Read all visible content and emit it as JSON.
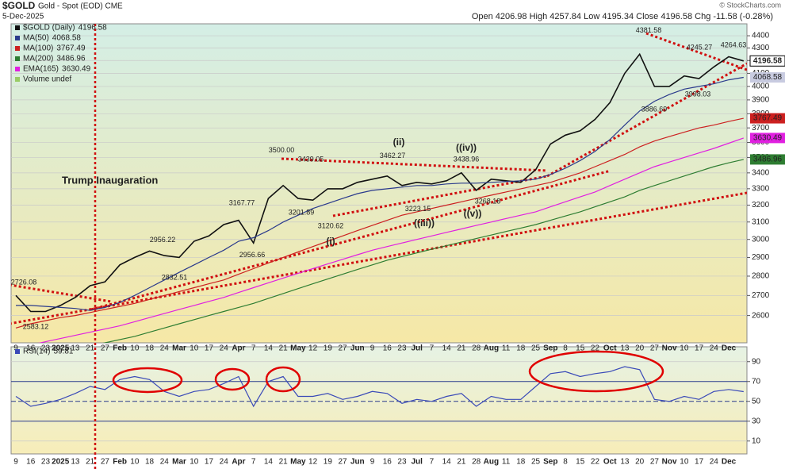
{
  "header": {
    "symbol": "$GOLD",
    "name": "Gold - Spot (EOD) CME",
    "date": "5-Dec-2025",
    "quote": "Open 4206.98  High 4257.84  Low 4195.34  Close 4196.58  Chg -11.58 (-0.28%)",
    "credit": "© StockCharts.com"
  },
  "chart_data": [
    {
      "type": "line",
      "log": true,
      "grid": true,
      "ylim": [
        2470,
        4500
      ],
      "yticks": [
        2600,
        2700,
        2800,
        2900,
        3000,
        3100,
        3200,
        3300,
        3400,
        3500,
        3600,
        3700,
        3800,
        3900,
        4000,
        4100,
        4200,
        4300,
        4400
      ],
      "categories": [
        "9",
        "16",
        "23",
        "2025",
        "13",
        "21",
        "27",
        "Feb",
        "10",
        "18",
        "24",
        "Mar",
        "10",
        "17",
        "24",
        "Apr",
        "7",
        "14",
        "21",
        "May",
        "12",
        "19",
        "27",
        "Jun",
        "9",
        "16",
        "23",
        "Jul",
        "7",
        "14",
        "21",
        "28",
        "Aug",
        "11",
        "18",
        "25",
        "Sep",
        "8",
        "15",
        "22",
        "Oct",
        "13",
        "20",
        "27",
        "Nov",
        "10",
        "17",
        "24",
        "Dec",
        null
      ],
      "series": [
        {
          "name": "$GOLD (Daily)",
          "color": "#111111",
          "values": [
            2700,
            2620,
            2620,
            2650,
            2690,
            2750,
            2770,
            2860,
            2900,
            2935,
            2910,
            2900,
            2990,
            3020,
            3085,
            3110,
            2980,
            3240,
            3320,
            3240,
            3230,
            3300,
            3300,
            3340,
            3360,
            3380,
            3320,
            3340,
            3330,
            3350,
            3400,
            3290,
            3360,
            3350,
            3340,
            3420,
            3590,
            3650,
            3680,
            3760,
            3880,
            4100,
            4250,
            4000,
            4000,
            4080,
            4060,
            4150,
            4230,
            4196.58
          ]
        },
        {
          "name": "MA(50)",
          "color": "#2a3a8c",
          "values": [
            2650,
            2650,
            2645,
            2640,
            2635,
            2625,
            2640,
            2665,
            2700,
            2740,
            2780,
            2820,
            2860,
            2900,
            2940,
            2990,
            3010,
            3050,
            3100,
            3140,
            3180,
            3210,
            3240,
            3270,
            3290,
            3300,
            3310,
            3320,
            3320,
            3330,
            3335,
            3335,
            3340,
            3345,
            3350,
            3360,
            3390,
            3430,
            3480,
            3540,
            3620,
            3720,
            3820,
            3890,
            3940,
            3980,
            4000,
            4020,
            4050,
            4068.58
          ]
        },
        {
          "name": "MA(100)",
          "color": "#cc2020",
          "values": [
            2540,
            2560,
            2575,
            2590,
            2600,
            2615,
            2630,
            2645,
            2660,
            2680,
            2700,
            2720,
            2740,
            2760,
            2780,
            2810,
            2840,
            2870,
            2900,
            2930,
            2960,
            2990,
            3020,
            3050,
            3080,
            3110,
            3140,
            3160,
            3180,
            3200,
            3220,
            3240,
            3260,
            3280,
            3300,
            3320,
            3340,
            3370,
            3400,
            3440,
            3480,
            3520,
            3570,
            3610,
            3640,
            3670,
            3700,
            3720,
            3745,
            3767.49
          ]
        },
        {
          "name": "MA(200)",
          "color": "#2e7d32",
          "values": [
            2400,
            2410,
            2420,
            2430,
            2440,
            2455,
            2470,
            2485,
            2500,
            2520,
            2540,
            2560,
            2580,
            2600,
            2620,
            2640,
            2660,
            2685,
            2710,
            2735,
            2760,
            2785,
            2810,
            2835,
            2860,
            2885,
            2905,
            2925,
            2945,
            2965,
            2985,
            3005,
            3025,
            3045,
            3065,
            3085,
            3110,
            3135,
            3160,
            3190,
            3220,
            3250,
            3290,
            3320,
            3350,
            3380,
            3410,
            3440,
            3465,
            3486.96
          ]
        },
        {
          "name": "EMA(165)",
          "color": "#e020e0",
          "values": [
            2440,
            2460,
            2475,
            2490,
            2505,
            2520,
            2535,
            2550,
            2570,
            2590,
            2610,
            2630,
            2650,
            2670,
            2690,
            2715,
            2740,
            2765,
            2790,
            2815,
            2840,
            2865,
            2890,
            2915,
            2940,
            2960,
            2980,
            3000,
            3020,
            3040,
            3060,
            3080,
            3100,
            3120,
            3140,
            3160,
            3190,
            3220,
            3250,
            3280,
            3320,
            3360,
            3400,
            3440,
            3470,
            3500,
            3530,
            3560,
            3595,
            3630.49
          ]
        }
      ],
      "volume_note": "Volume undef",
      "annotations": [
        "Trump Inaugaration",
        "(i)",
        "(ii)",
        "((iii))",
        "((iv))",
        "((v))"
      ],
      "price_labels": [
        {
          "value": 2726.08,
          "label": "2726.08"
        },
        {
          "value": 2583.12,
          "label": "2583.12"
        },
        {
          "value": 2956.22,
          "label": "2956.22"
        },
        {
          "value": 2832.51,
          "label": "2832.51"
        },
        {
          "value": 3167.77,
          "label": "3167.77"
        },
        {
          "value": 2956.66,
          "label": "2956.66"
        },
        {
          "value": 3500,
          "label": "3500.00"
        },
        {
          "value": 3439.05,
          "label": "3439.05"
        },
        {
          "value": 3201.89,
          "label": "3201.89"
        },
        {
          "value": 3120.62,
          "label": "3120.62"
        },
        {
          "value": 3462.27,
          "label": "3462.27"
        },
        {
          "value": 3223.15,
          "label": "3223.15"
        },
        {
          "value": 3438.96,
          "label": "3438.96"
        },
        {
          "value": 3268.18,
          "label": "3268.18"
        },
        {
          "value": 4381.58,
          "label": "4381.58"
        },
        {
          "value": 3886.69,
          "label": "3886.69"
        },
        {
          "value": 4245.27,
          "label": "4245.27"
        },
        {
          "value": 3998.03,
          "label": "3998.03"
        },
        {
          "value": 4264.63,
          "label": "4264.63"
        }
      ]
    },
    {
      "type": "line",
      "grid": true,
      "ylim": [
        -3,
        105
      ],
      "yticks": [
        10,
        30,
        50,
        70,
        90
      ],
      "categories": [
        "9",
        "16",
        "23",
        "2025",
        "13",
        "21",
        "27",
        "Feb",
        "10",
        "18",
        "24",
        "Mar",
        "10",
        "17",
        "24",
        "Apr",
        "7",
        "14",
        "21",
        "May",
        "12",
        "19",
        "27",
        "Jun",
        "9",
        "16",
        "23",
        "Jul",
        "7",
        "14",
        "21",
        "28",
        "Aug",
        "11",
        "18",
        "25",
        "Sep",
        "8",
        "15",
        "22",
        "Oct",
        "13",
        "20",
        "27",
        "Nov",
        "10",
        "17",
        "24",
        "Dec",
        null
      ],
      "series": [
        {
          "name": "RSI(14)",
          "color": "#3a4ab8",
          "values": [
            55,
            45,
            48,
            52,
            58,
            65,
            62,
            72,
            75,
            72,
            60,
            55,
            60,
            62,
            68,
            75,
            45,
            70,
            75,
            55,
            55,
            58,
            52,
            55,
            60,
            58,
            48,
            52,
            50,
            55,
            58,
            45,
            55,
            52,
            52,
            65,
            78,
            80,
            75,
            78,
            80,
            85,
            82,
            52,
            50,
            55,
            52,
            60,
            62,
            59.81
          ]
        }
      ]
    }
  ]
}
